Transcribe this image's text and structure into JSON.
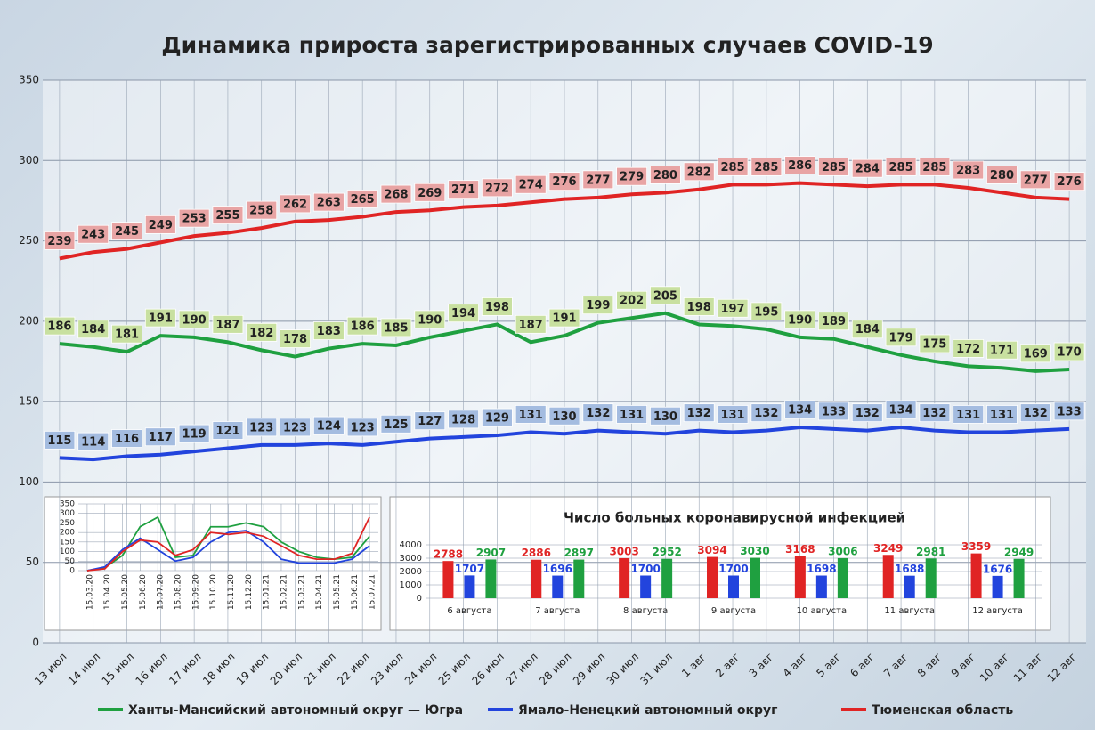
{
  "chart_data": [
    {
      "type": "line",
      "title": "Динамика прироста зарегистрированных случаев COVID-19",
      "categories": [
        "13 июл",
        "14 июл",
        "15 июл",
        "16 июл",
        "17 июл",
        "18 июл",
        "19 июл",
        "20 июл",
        "21 июл",
        "22 июл",
        "23 июл",
        "24 июл",
        "25 июл",
        "26 июл",
        "27 июл",
        "28 июл",
        "29 июл",
        "30 июл",
        "31 июл",
        "1 авг",
        "2 авг",
        "3 авг",
        "4 авг",
        "5 авг",
        "6 авг",
        "7 авг",
        "8 авг",
        "9 авг",
        "10 авг",
        "11 авг",
        "12 авг"
      ],
      "series": [
        {
          "name": "Ханты-Мансийский автономный округ — Югра",
          "color": "#1fa040",
          "label_color": "#c8e0a0",
          "values": [
            186,
            184,
            181,
            191,
            190,
            187,
            182,
            178,
            183,
            186,
            185,
            190,
            194,
            198,
            187,
            191,
            199,
            202,
            205,
            198,
            197,
            195,
            190,
            189,
            184,
            179,
            175,
            172,
            171,
            169,
            170
          ]
        },
        {
          "name": "Ямало-Ненецкий автономный округ",
          "color": "#2244dd",
          "label_color": "#a4bce0",
          "values": [
            115,
            114,
            116,
            117,
            119,
            121,
            123,
            123,
            124,
            123,
            125,
            127,
            128,
            129,
            131,
            130,
            132,
            131,
            130,
            132,
            131,
            132,
            134,
            133,
            132,
            134,
            132,
            131,
            131,
            132,
            133
          ]
        },
        {
          "name": "Тюменская область",
          "color": "#e02424",
          "label_color": "#e8a4a4",
          "values": [
            239,
            243,
            245,
            249,
            253,
            255,
            258,
            262,
            263,
            265,
            268,
            269,
            271,
            272,
            274,
            276,
            277,
            279,
            280,
            282,
            285,
            285,
            286,
            285,
            284,
            285,
            285,
            283,
            280,
            277,
            276
          ]
        }
      ],
      "ylim": [
        0,
        350
      ],
      "yticks": [
        0,
        50,
        100,
        150,
        200,
        250,
        300,
        350
      ],
      "grid": true,
      "legend": "bottom"
    },
    {
      "type": "line",
      "categories": [
        "15.03.20",
        "15.04.20",
        "15.05.20",
        "15.06.20",
        "15.07.20",
        "15.08.20",
        "15.09.20",
        "15.10.20",
        "15.11.20",
        "15.12.20",
        "15.01.21",
        "15.02.21",
        "15.03.21",
        "15.04.21",
        "15.05.21",
        "15.06.21",
        "15.07.21"
      ],
      "series": [
        {
          "color": "#1fa040",
          "values": [
            0,
            15,
            80,
            230,
            280,
            70,
            80,
            230,
            230,
            250,
            230,
            150,
            100,
            70,
            60,
            70,
            180
          ]
        },
        {
          "color": "#2244dd",
          "values": [
            0,
            20,
            110,
            170,
            110,
            50,
            70,
            150,
            200,
            210,
            150,
            60,
            40,
            40,
            40,
            60,
            130
          ]
        },
        {
          "color": "#e02424",
          "values": [
            0,
            10,
            100,
            160,
            150,
            80,
            110,
            200,
            190,
            200,
            180,
            130,
            80,
            60,
            60,
            90,
            280
          ]
        }
      ],
      "ylim": [
        0,
        350
      ],
      "yticks": [
        0,
        50,
        100,
        150,
        200,
        250,
        300,
        350
      ],
      "grid": true
    },
    {
      "type": "bar",
      "title": "Число больных  коронавирусной  инфекцией",
      "categories": [
        "6 августа",
        "7 августа",
        "8 августа",
        "9 августа",
        "10 августа",
        "11 августа",
        "12 августа"
      ],
      "series": [
        {
          "color": "#e02424",
          "values": [
            2788,
            2886,
            3003,
            3094,
            3168,
            3249,
            3359
          ]
        },
        {
          "color": "#2244dd",
          "values": [
            1707,
            1696,
            1700,
            1700,
            1698,
            1688,
            1676
          ]
        },
        {
          "color": "#1fa040",
          "values": [
            2907,
            2897,
            2952,
            3030,
            3006,
            2981,
            2949
          ]
        }
      ],
      "ylim": [
        0,
        4000
      ],
      "yticks": [
        0,
        1000,
        2000,
        3000,
        4000
      ],
      "grid": true
    }
  ]
}
